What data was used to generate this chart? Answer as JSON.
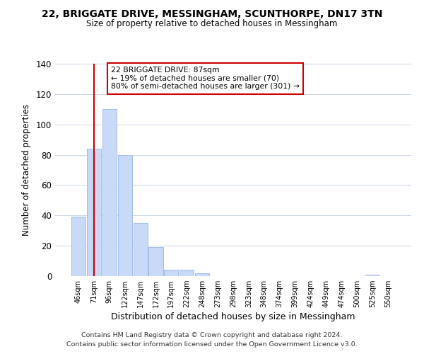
{
  "title": "22, BRIGGATE DRIVE, MESSINGHAM, SCUNTHORPE, DN17 3TN",
  "subtitle": "Size of property relative to detached houses in Messingham",
  "xlabel": "Distribution of detached houses by size in Messingham",
  "ylabel": "Number of detached properties",
  "bar_labels": [
    "46sqm",
    "71sqm",
    "96sqm",
    "122sqm",
    "147sqm",
    "172sqm",
    "197sqm",
    "222sqm",
    "248sqm",
    "273sqm",
    "298sqm",
    "323sqm",
    "348sqm",
    "374sqm",
    "399sqm",
    "424sqm",
    "449sqm",
    "474sqm",
    "500sqm",
    "525sqm",
    "550sqm"
  ],
  "bar_values": [
    39,
    84,
    110,
    80,
    35,
    19,
    4,
    4,
    2,
    0,
    0,
    0,
    0,
    0,
    0,
    0,
    0,
    0,
    0,
    1,
    0
  ],
  "bar_color": "#c9daf8",
  "bar_edge_color": "#a0bde8",
  "vline_x": 1.0,
  "vline_color": "#cc0000",
  "ylim": [
    0,
    140
  ],
  "yticks": [
    0,
    20,
    40,
    60,
    80,
    100,
    120,
    140
  ],
  "annotation_title": "22 BRIGGATE DRIVE: 87sqm",
  "annotation_line1": "← 19% of detached houses are smaller (70)",
  "annotation_line2": "80% of semi-detached houses are larger (301) →",
  "footer1": "Contains HM Land Registry data © Crown copyright and database right 2024.",
  "footer2": "Contains public sector information licensed under the Open Government Licence v3.0.",
  "background_color": "#ffffff",
  "grid_color": "#ccd6e8"
}
